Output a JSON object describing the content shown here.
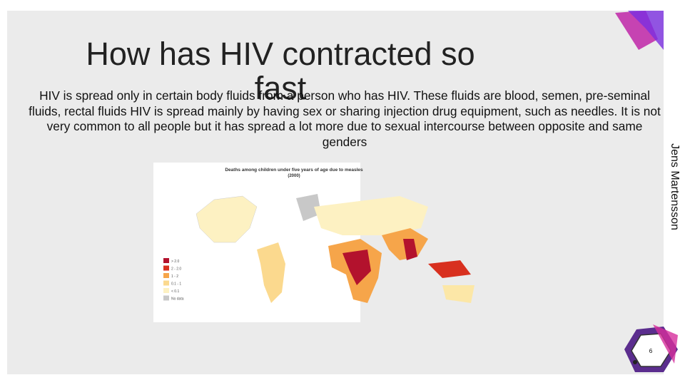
{
  "header": {
    "title": "How has HIV contracted so fast"
  },
  "body": {
    "text": "HIV is spread only in certain body fluids from a person who has HIV. These fluids are blood, semen, pre-seminal fluids, rectal fluids HIV is spread mainly by having sex or sharing injection drug equipment, such as needles. It is not very common to all people but it has spread a lot more due to sexual intercourse between opposite and same genders"
  },
  "map": {
    "title": "Deaths among children under five years of age due to measles",
    "subtitle": "(2000)",
    "legend": [
      "> 2.0",
      "2 - 2.0",
      "1 - 2",
      "0.1 - 1",
      "< 0.1",
      "No data"
    ]
  },
  "footer": {
    "author": "Jens Martensson",
    "page": "6"
  }
}
